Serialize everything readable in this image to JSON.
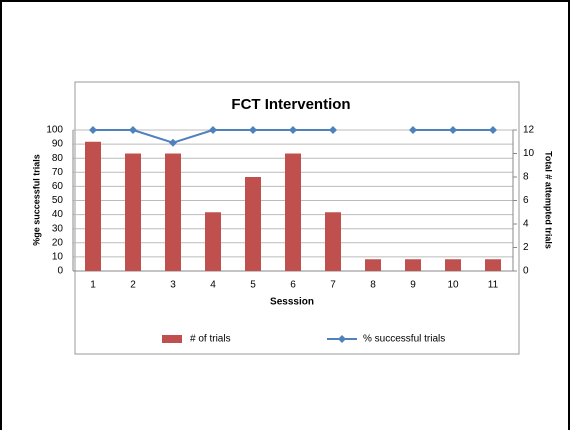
{
  "chart_data": {
    "type": "bar-line",
    "title": "FCT Intervention",
    "x_label": "Sesssion",
    "y_label": "%ge successful trials",
    "y2_label": "Total # attempted trials",
    "categories": [
      "1",
      "2",
      "3",
      "4",
      "5",
      "6",
      "7",
      "8",
      "9",
      "10",
      "11"
    ],
    "series": [
      {
        "name": "# of trials",
        "type": "bar",
        "axis": "y2",
        "color": "#c0504d",
        "values": [
          11,
          10,
          10,
          5,
          8,
          10,
          5,
          1,
          1,
          1,
          1
        ]
      },
      {
        "name": "% successful trials",
        "type": "line",
        "axis": "y",
        "color": "#4f81bd",
        "values": [
          100,
          100,
          91,
          100,
          100,
          100,
          100,
          null,
          100,
          100,
          100
        ]
      }
    ],
    "ylim": [
      0,
      100
    ],
    "yticks": [
      0,
      10,
      20,
      30,
      40,
      50,
      60,
      70,
      80,
      90,
      100
    ],
    "y2lim": [
      0,
      12
    ],
    "y2ticks": [
      0,
      2,
      4,
      6,
      8,
      10,
      12
    ],
    "grid": true,
    "legend": "bottom"
  }
}
